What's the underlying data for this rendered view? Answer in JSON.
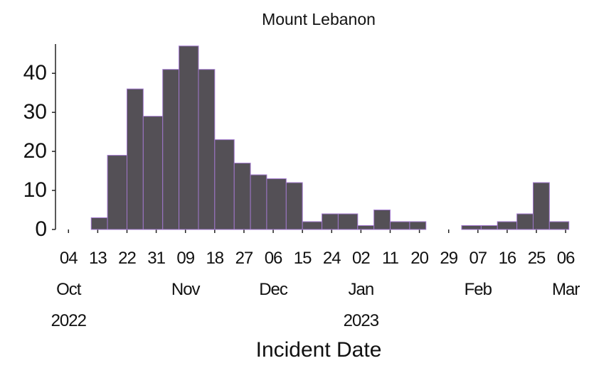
{
  "chart_data": {
    "type": "histogram",
    "title": "Mount Lebanon",
    "x_label": "Incident Date",
    "bins": [
      "2022-10-11",
      "2022-10-16",
      "2022-10-22",
      "2022-10-27",
      "2022-11-02",
      "2022-11-07",
      "2022-11-13",
      "2022-11-18",
      "2022-11-24",
      "2022-11-29",
      "2022-12-04",
      "2022-12-10",
      "2022-12-15",
      "2022-12-21",
      "2022-12-26",
      "2023-01-01",
      "2023-01-06",
      "2023-01-11",
      "2023-01-17",
      "2023-01-22",
      "2023-01-28",
      "2023-02-02",
      "2023-02-08",
      "2023-02-13",
      "2023-02-19",
      "2023-02-24",
      "2023-03-01",
      "2023-03-07"
    ],
    "values": [
      3,
      19,
      36,
      29,
      41,
      47,
      41,
      23,
      17,
      14,
      13,
      12,
      2,
      4,
      4,
      1,
      5,
      2,
      2,
      0,
      0,
      1,
      1,
      2,
      4,
      12,
      2
    ],
    "color": "#545056",
    "edge_color": "#a077cc",
    "xlim": [
      "2022-09-30",
      "2023-03-11"
    ],
    "ylim": [
      0,
      47.5
    ],
    "yticks": [
      0,
      10,
      20,
      30,
      40
    ],
    "xticks": [
      {
        "value": "2022-10-04",
        "label": "04\nOct\n2022"
      },
      {
        "value": "2022-10-13",
        "label": "13"
      },
      {
        "value": "2022-10-22",
        "label": "22"
      },
      {
        "value": "2022-10-31",
        "label": "31"
      },
      {
        "value": "2022-11-09",
        "label": "09\nNov"
      },
      {
        "value": "2022-11-18",
        "label": "18"
      },
      {
        "value": "2022-11-27",
        "label": "27"
      },
      {
        "value": "2022-12-06",
        "label": "06\nDec"
      },
      {
        "value": "2022-12-15",
        "label": "15"
      },
      {
        "value": "2022-12-24",
        "label": "24"
      },
      {
        "value": "2023-01-02",
        "label": "02\nJan\n2023"
      },
      {
        "value": "2023-01-11",
        "label": "11"
      },
      {
        "value": "2023-01-20",
        "label": "20"
      },
      {
        "value": "2023-01-29",
        "label": "29"
      },
      {
        "value": "2023-02-07",
        "label": "07\nFeb"
      },
      {
        "value": "2023-02-16",
        "label": "16"
      },
      {
        "value": "2023-02-25",
        "label": "25"
      },
      {
        "value": "2023-03-06",
        "label": "06\nMar"
      }
    ]
  }
}
